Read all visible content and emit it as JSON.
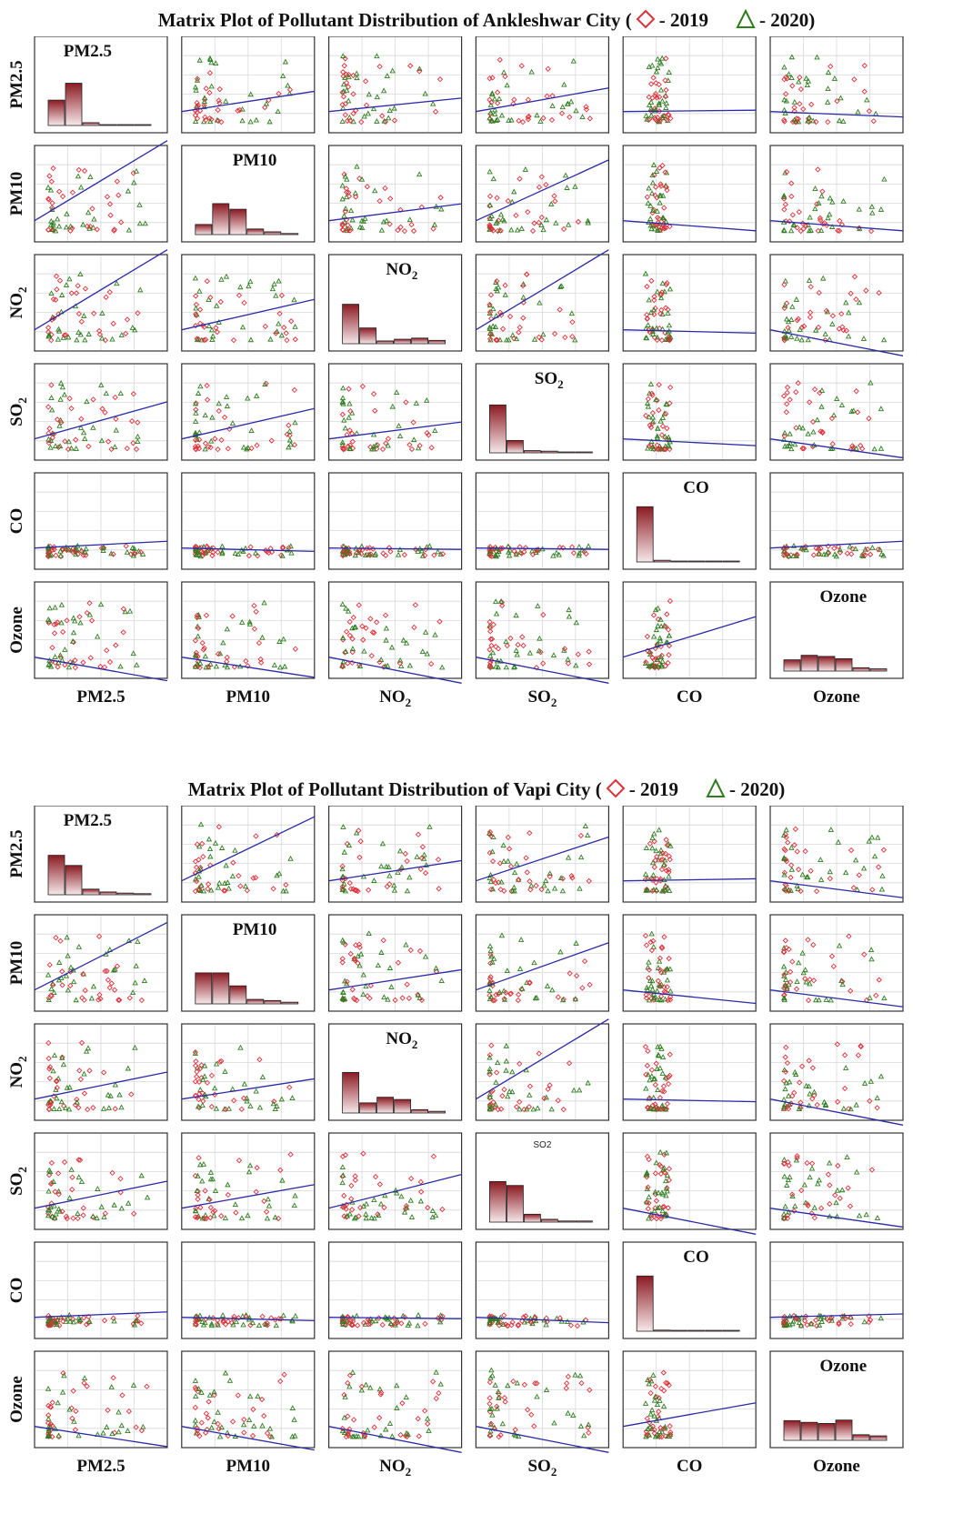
{
  "colors": {
    "y2019": "#e0303a",
    "y2020": "#2e7d1f",
    "fit": "#2b2aa8",
    "grid": "#d8d8d8",
    "frame": "#333333",
    "bar_top": "#8b1a22",
    "bar_bottom": "#f6e8ea"
  },
  "legend": {
    "y2019": "- 2019",
    "y2020": "- 2020"
  },
  "chart_data": [
    {
      "type": "scatter",
      "title_prefix": "Matrix Plot of Pollutant Distribution of Ankleshwar City (",
      "title_suffix": ")",
      "legend_2019": "- 2019",
      "legend_2020": "- 2020",
      "variables": [
        "PM2.5",
        "PM10",
        "NO2",
        "SO2",
        "CO",
        "Ozone"
      ],
      "diagonal_histograms": [
        [
          0.45,
          0.75,
          0.05,
          0.01,
          0.01,
          0.01
        ],
        [
          0.18,
          0.55,
          0.45,
          0.1,
          0.05,
          0.02
        ],
        [
          0.7,
          0.28,
          0.05,
          0.08,
          0.1,
          0.06
        ],
        [
          0.85,
          0.22,
          0.04,
          0.03,
          0.01,
          0.01
        ],
        [
          0.98,
          0.03,
          0.01,
          0.01,
          0.01,
          0.01
        ],
        [
          0.2,
          0.28,
          0.26,
          0.22,
          0.06,
          0.04
        ]
      ],
      "fit_slopes": [
        [
          0,
          0.3,
          0.2,
          0.35,
          0.02,
          -0.08
        ],
        [
          1.2,
          0,
          0.25,
          0.9,
          -0.15,
          -0.15
        ],
        [
          1.3,
          0.45,
          0,
          1.4,
          -0.05,
          -0.55
        ],
        [
          0.55,
          0.45,
          0.25,
          0,
          -0.1,
          -0.28
        ],
        [
          0.1,
          -0.05,
          -0.02,
          -0.02,
          0,
          0.1
        ],
        [
          -0.35,
          -0.3,
          -0.4,
          -0.9,
          0.6,
          0
        ]
      ]
    },
    {
      "type": "scatter",
      "title_prefix": "Matrix Plot of Pollutant Distribution of Vapi City (",
      "title_suffix": ")",
      "legend_2019": "- 2019",
      "legend_2020": "- 2020",
      "variables": [
        "PM2.5",
        "PM10",
        "NO2",
        "SO2",
        "CO",
        "Ozone"
      ],
      "diagonal_labels": [
        "PM2.5",
        "PM10",
        "NO2",
        "SO2",
        "CO",
        "Ozone"
      ],
      "diagonal_histograms": [
        [
          0.7,
          0.52,
          0.1,
          0.05,
          0.03,
          0.02
        ],
        [
          0.55,
          0.55,
          0.32,
          0.08,
          0.06,
          0.03
        ],
        [
          0.72,
          0.18,
          0.28,
          0.24,
          0.06,
          0.03
        ],
        [
          0.72,
          0.65,
          0.14,
          0.05,
          0.02,
          0.02
        ],
        [
          0.98,
          0.02,
          0.01,
          0.01,
          0.01,
          0.01
        ],
        [
          0.35,
          0.32,
          0.3,
          0.36,
          0.1,
          0.08
        ]
      ],
      "fit_slopes": [
        [
          0,
          0.95,
          0.3,
          0.65,
          0.03,
          -0.25
        ],
        [
          1.0,
          0,
          0.3,
          0.7,
          -0.2,
          -0.25
        ],
        [
          0.4,
          0.3,
          0,
          2.0,
          -0.04,
          -0.6
        ],
        [
          0.4,
          0.35,
          0.5,
          0,
          -0.4,
          -0.28
        ],
        [
          0.08,
          -0.05,
          -0.02,
          -0.08,
          0,
          0.05
        ],
        [
          -0.3,
          -0.35,
          -0.7,
          -0.7,
          0.35,
          0
        ]
      ]
    }
  ]
}
